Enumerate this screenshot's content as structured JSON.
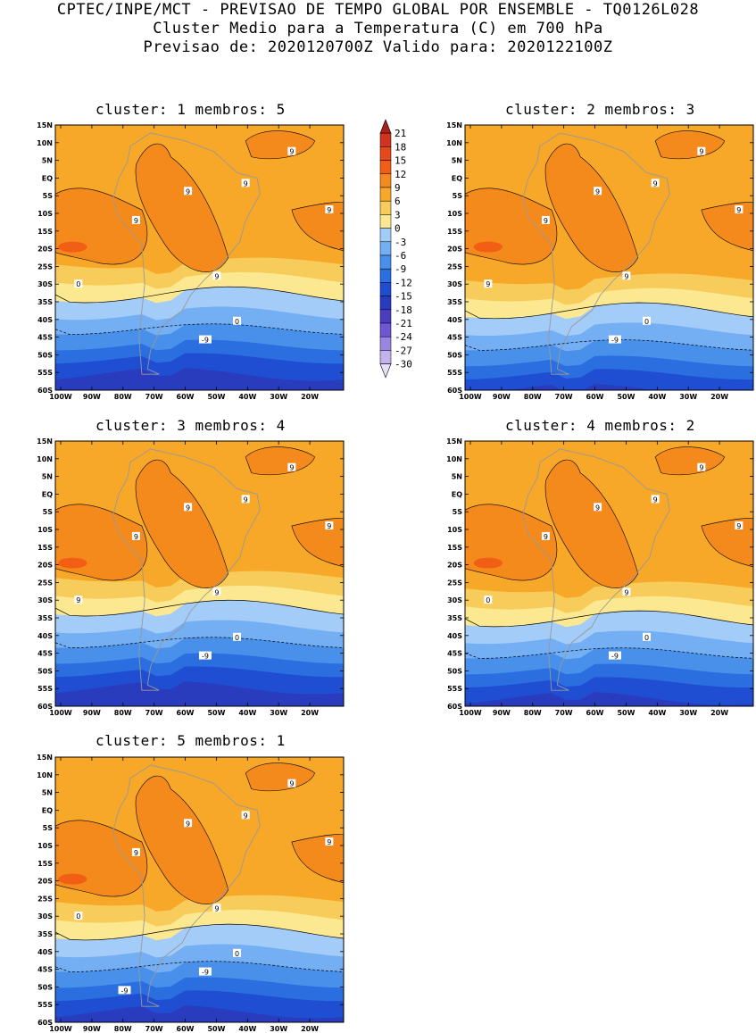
{
  "header": {
    "line1": "CPTEC/INPE/MCT - PREVISAO DE TEMPO GLOBAL POR ENSEMBLE - TQ0126L028",
    "line2": "Cluster Medio para a Temperatura (C) em 700 hPa",
    "line3": "Previsao de: 2020120700Z   Valido para: 2020122100Z"
  },
  "panels": [
    {
      "id": 1,
      "title": "cluster: 1  membros: 5",
      "contour_labels": [
        "9",
        "9",
        "9",
        "9",
        "9",
        "9",
        "0",
        "0",
        "-9"
      ]
    },
    {
      "id": 2,
      "title": "cluster: 2  membros: 3",
      "contour_labels": [
        "9",
        "9",
        "9",
        "9",
        "9",
        "9",
        "9",
        "0",
        "-9"
      ]
    },
    {
      "id": 3,
      "title": "cluster: 3  membros: 4",
      "contour_labels": [
        "9",
        "9",
        "9",
        "9",
        "9",
        "9",
        "9",
        "0",
        "-9"
      ]
    },
    {
      "id": 4,
      "title": "cluster: 4  membros: 2",
      "contour_labels": [
        "9",
        "9",
        "9",
        "9",
        "9",
        "9",
        "0",
        "0",
        "-9"
      ]
    },
    {
      "id": 5,
      "title": "cluster: 5  membros: 1",
      "contour_labels": [
        "9",
        "9",
        "9",
        "9",
        "9",
        "9",
        "0",
        "0",
        "-9",
        "-9"
      ]
    }
  ],
  "axes": {
    "lat_labels": [
      "15N",
      "10N",
      "5N",
      "EQ",
      "5S",
      "10S",
      "15S",
      "20S",
      "25S",
      "30S",
      "35S",
      "40S",
      "45S",
      "50S",
      "55S",
      "60S"
    ],
    "lon_labels": [
      "100W",
      "90W",
      "80W",
      "70W",
      "60W",
      "50W",
      "40W",
      "30W",
      "20W"
    ]
  },
  "colorbar": {
    "labels": [
      "21",
      "18",
      "15",
      "12",
      "9",
      "6",
      "3",
      "0",
      "-3",
      "-6",
      "-9",
      "-12",
      "-15",
      "-18",
      "-21",
      "-24",
      "-27",
      "-30"
    ],
    "colors": [
      "#a52119",
      "#d2331f",
      "#e64818",
      "#f25e14",
      "#f58a1c",
      "#f7a828",
      "#f8cc5a",
      "#fbe890",
      "#a4ccf8",
      "#74aef3",
      "#4890ea",
      "#2a6ee0",
      "#1f4ed3",
      "#2a3cbe",
      "#4a3dc0",
      "#6e56d4",
      "#9a85e2",
      "#c1b4ee",
      "#e5e1f6"
    ]
  }
}
